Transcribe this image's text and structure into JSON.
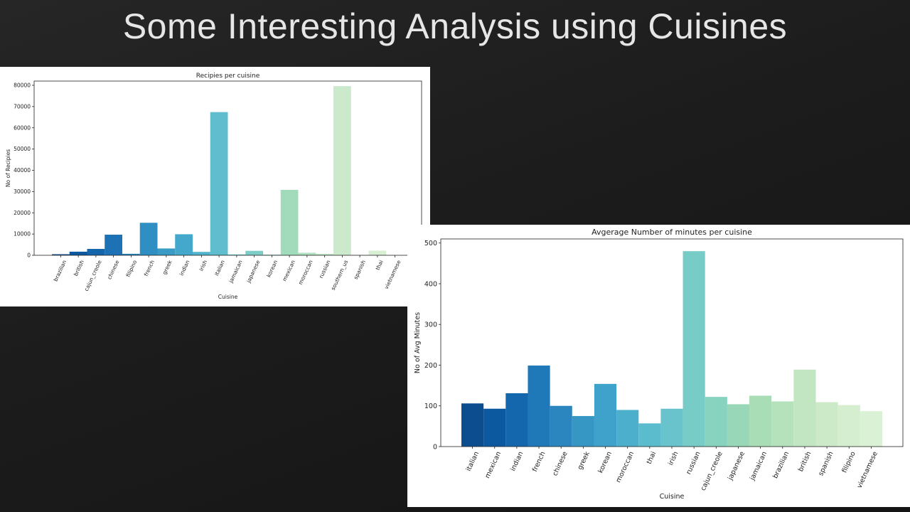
{
  "slide": {
    "title": "Some Interesting Analysis using Cuisines"
  },
  "chart_data": [
    {
      "type": "bar",
      "title": "Recipies per cuisine",
      "xlabel": "Cuisine",
      "ylabel": "No of Recipies",
      "ylim": [
        0,
        82000
      ],
      "yticks": [
        0,
        10000,
        20000,
        30000,
        40000,
        50000,
        60000,
        70000,
        80000
      ],
      "categories": [
        "brazilian",
        "british",
        "cajun_creole",
        "chinese",
        "filipino",
        "french",
        "greek",
        "indian",
        "irish",
        "italian",
        "jamaican",
        "japanese",
        "korean",
        "mexican",
        "moroccan",
        "russian",
        "southern_us",
        "spanish",
        "thai",
        "vietnamese"
      ],
      "values": [
        500,
        1700,
        3000,
        9700,
        700,
        15300,
        3200,
        9900,
        1600,
        67400,
        400,
        2100,
        300,
        30800,
        1200,
        700,
        79600,
        200,
        2200,
        100
      ],
      "colors": [
        "#0b4d8f",
        "#0d59a0",
        "#1465ab",
        "#1c72b4",
        "#2480bb",
        "#2f8ec2",
        "#3a9bc7",
        "#44a8cc",
        "#52b3cd",
        "#5fbdcd",
        "#6ec6cc",
        "#7ccdc8",
        "#8ad2c3",
        "#a2dbbc",
        "#b0e0c0",
        "#bde5c4",
        "#cbe9cb",
        "#d3ecce",
        "#d9efd4",
        "#e0f2da"
      ]
    },
    {
      "type": "bar",
      "title": "Avgerage Number of minutes per cuisine",
      "xlabel": "Cuisine",
      "ylabel": "No of Avg Minutes",
      "ylim": [
        0,
        510
      ],
      "yticks": [
        0,
        100,
        200,
        300,
        400,
        500
      ],
      "categories": [
        "italian",
        "mexican",
        "indian",
        "french",
        "chinese",
        "greek",
        "korean",
        "moroccan",
        "thai",
        "irish",
        "russian",
        "cajun_creole",
        "japanese",
        "jamaican",
        "brazilian",
        "british",
        "spanish",
        "filipino",
        "vietnamese"
      ],
      "values": [
        106,
        93,
        131,
        199,
        100,
        75,
        154,
        90,
        57,
        93,
        480,
        122,
        104,
        125,
        111,
        189,
        109,
        102,
        87
      ],
      "colors": [
        "#0b4d8f",
        "#0d59a0",
        "#1466ad",
        "#1f78b8",
        "#2b86bf",
        "#3696c4",
        "#3ea2ca",
        "#4cb0cd",
        "#5bbccd",
        "#68c3cc",
        "#78ccc7",
        "#87d3c0",
        "#98d8b9",
        "#a8ddb5",
        "#b6e2bb",
        "#c3e6c2",
        "#cdeac8",
        "#d5eecf",
        "#dbf1d6"
      ]
    }
  ]
}
